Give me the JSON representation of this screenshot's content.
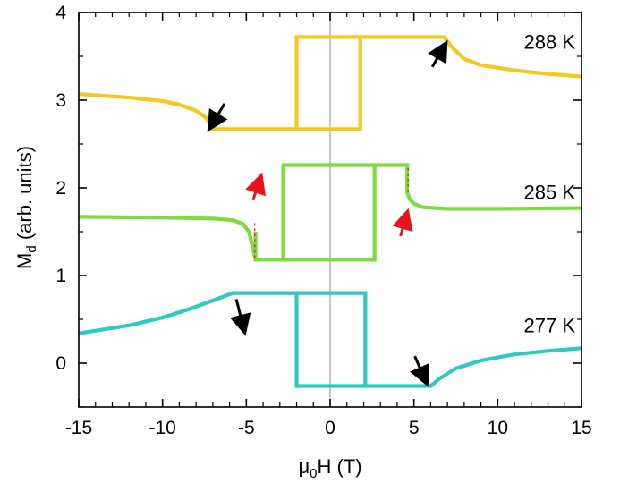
{
  "chart_data": {
    "type": "line",
    "xlabel": "μ0H (T)",
    "ylabel": "Md (arb. units)",
    "xlim": [
      -15,
      15
    ],
    "ylim": [
      -0.5,
      4
    ],
    "x_ticks": [
      -15,
      -10,
      -5,
      0,
      5,
      10,
      15
    ],
    "y_ticks": [
      0,
      1,
      2,
      3,
      4
    ],
    "grid": false,
    "zero_line": {
      "x": 0,
      "color": "#b0b0b0"
    },
    "series": [
      {
        "name": "288 K",
        "color": "#f5c81f",
        "points": [
          [
            -15,
            3.07
          ],
          [
            -12,
            3.03
          ],
          [
            -10,
            2.99
          ],
          [
            -9,
            2.95
          ],
          [
            -8,
            2.88
          ],
          [
            -7.4,
            2.8
          ],
          [
            -7.0,
            2.67
          ],
          [
            -2.0,
            2.67
          ],
          [
            -2.0,
            3.72
          ],
          [
            1.8,
            3.72
          ],
          [
            1.8,
            2.67
          ],
          [
            -2.0,
            2.67
          ],
          [
            -2.0,
            3.72
          ],
          [
            6.8,
            3.72
          ],
          [
            7.3,
            3.6
          ],
          [
            8,
            3.47
          ],
          [
            9,
            3.4
          ],
          [
            11,
            3.34
          ],
          [
            13,
            3.3
          ],
          [
            15,
            3.27
          ]
        ]
      },
      {
        "name": "285 K",
        "color": "#7fdc3f",
        "points": [
          [
            -15,
            1.67
          ],
          [
            -10,
            1.66
          ],
          [
            -7,
            1.65
          ],
          [
            -5.8,
            1.63
          ],
          [
            -5.2,
            1.59
          ],
          [
            -4.85,
            1.5
          ],
          [
            -4.65,
            1.35
          ],
          [
            -4.45,
            1.18
          ],
          [
            -4.45,
            1.18
          ],
          [
            -4.45,
            1.5
          ],
          [
            -4.45,
            1.18
          ],
          [
            -2.8,
            1.18
          ],
          [
            -2.8,
            2.26
          ],
          [
            2.65,
            2.26
          ],
          [
            2.65,
            1.18
          ],
          [
            -4.45,
            1.18
          ],
          [
            -4.45,
            1.5
          ],
          [
            -4.45,
            1.18
          ],
          [
            -2.8,
            1.18
          ],
          [
            -2.8,
            2.26
          ],
          [
            4.6,
            2.26
          ],
          [
            4.6,
            1.95
          ],
          [
            4.6,
            2.26
          ],
          [
            4.6,
            1.95
          ],
          [
            4.75,
            1.87
          ],
          [
            5.0,
            1.82
          ],
          [
            5.5,
            1.78
          ],
          [
            7,
            1.76
          ],
          [
            10,
            1.76
          ],
          [
            15,
            1.77
          ]
        ]
      },
      {
        "name": "277 K",
        "color": "#2ec9c0",
        "points": [
          [
            -15,
            0.34
          ],
          [
            -12,
            0.43
          ],
          [
            -10,
            0.52
          ],
          [
            -8.5,
            0.61
          ],
          [
            -7.5,
            0.68
          ],
          [
            -6.5,
            0.75
          ],
          [
            -5.8,
            0.8
          ],
          [
            2.1,
            0.8
          ],
          [
            2.1,
            -0.26
          ],
          [
            -2.0,
            -0.26
          ],
          [
            -2.0,
            0.8
          ],
          [
            -5.8,
            0.8
          ],
          [
            -2.0,
            0.8
          ],
          [
            -2.0,
            -0.26
          ],
          [
            6.0,
            -0.26
          ],
          [
            6.5,
            -0.18
          ],
          [
            7.5,
            -0.06
          ],
          [
            9,
            0.03
          ],
          [
            11,
            0.1
          ],
          [
            13,
            0.14
          ],
          [
            15,
            0.17
          ]
        ]
      }
    ],
    "curve_labels": [
      {
        "text": "288 K",
        "series": "288 K"
      },
      {
        "text": "285 K",
        "series": "285 K"
      },
      {
        "text": "277 K",
        "series": "277 K"
      }
    ],
    "annotations": [
      {
        "type": "arrow",
        "color": "#000000",
        "from": [
          -6.3,
          2.96
        ],
        "to": [
          -7.0,
          2.74
        ]
      },
      {
        "type": "arrow",
        "color": "#000000",
        "from": [
          6.1,
          3.38
        ],
        "to": [
          6.7,
          3.58
        ]
      },
      {
        "type": "arrow",
        "color": "#e8141c",
        "from": [
          -4.6,
          1.86
        ],
        "to": [
          -4.25,
          2.06
        ]
      },
      {
        "type": "arrow",
        "color": "#e8141c",
        "from": [
          4.2,
          1.45
        ],
        "to": [
          4.5,
          1.65
        ]
      },
      {
        "type": "arrow",
        "color": "#000000",
        "from": [
          -5.6,
          0.73
        ],
        "to": [
          -5.2,
          0.43
        ]
      },
      {
        "type": "arrow",
        "color": "#000000",
        "from": [
          5.05,
          0.08
        ],
        "to": [
          5.6,
          -0.16
        ]
      },
      {
        "type": "dashed-line",
        "color": "#e8141c",
        "from": [
          -4.5,
          1.2
        ],
        "to": [
          -4.5,
          1.6
        ]
      },
      {
        "type": "dashed-line",
        "color": "#e8141c",
        "from": [
          4.65,
          1.95
        ],
        "to": [
          4.65,
          2.25
        ]
      }
    ]
  }
}
